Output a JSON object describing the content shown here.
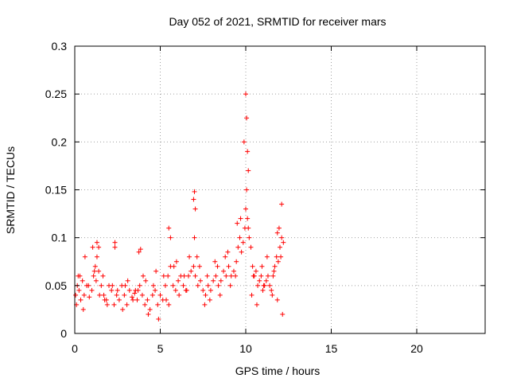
{
  "chart_data": {
    "type": "scatter",
    "title": "Day 052 of 2021, SRMTID for receiver mars",
    "xlabel": "GPS time / hours",
    "ylabel": "SRMTID / TECUs",
    "xlim": [
      0,
      24
    ],
    "ylim": [
      0,
      0.3
    ],
    "xticks": [
      0,
      5,
      10,
      15,
      20
    ],
    "xtick_labels": [
      "0",
      "5",
      "10",
      "15",
      "20"
    ],
    "yticks": [
      0,
      0.05,
      0.1,
      0.15,
      0.2,
      0.25,
      0.3
    ],
    "ytick_labels": [
      "0",
      "0.05",
      "0.1",
      "0.15",
      "0.2",
      "0.25",
      "0.3"
    ],
    "grid": true,
    "marker": "+",
    "series": [
      {
        "name": "SRMTID",
        "color": "#ff0000",
        "x": [
          0.05,
          0.15,
          0.25,
          0.35,
          0.45,
          0.55,
          0.7,
          0.85,
          1.0,
          1.1,
          1.2,
          1.3,
          1.4,
          1.55,
          1.7,
          1.85,
          2.0,
          2.15,
          2.3,
          2.45,
          2.6,
          2.75,
          2.9,
          3.05,
          3.2,
          3.35,
          3.5,
          3.65,
          3.8,
          3.95,
          4.1,
          4.25,
          4.4,
          4.55,
          4.7,
          4.85,
          5.0,
          5.15,
          5.3,
          5.45,
          5.6,
          5.75,
          5.9,
          6.05,
          6.2,
          6.35,
          6.5,
          6.65,
          6.8,
          6.95,
          7.05,
          7.2,
          7.35,
          7.5,
          7.65,
          7.8,
          7.95,
          8.1,
          8.25,
          8.4,
          8.55,
          8.7,
          8.85,
          9.0,
          9.15,
          9.3,
          9.45,
          9.55,
          9.65,
          9.75,
          9.85,
          9.95,
          10.0,
          10.05,
          10.1,
          10.15,
          10.2,
          10.3,
          10.4,
          10.5,
          10.6,
          10.7,
          10.8,
          10.9,
          11.0,
          11.1,
          11.2,
          11.3,
          11.4,
          11.5,
          11.6,
          11.7,
          11.8,
          11.9,
          12.0,
          12.1,
          12.2,
          0.1,
          0.3,
          0.5,
          0.8,
          1.05,
          1.25,
          1.45,
          1.65,
          1.9,
          2.2,
          2.5,
          2.8,
          3.1,
          3.4,
          3.7,
          4.0,
          4.3,
          4.6,
          4.9,
          5.2,
          5.5,
          5.8,
          6.1,
          6.4,
          6.7,
          7.0,
          7.3,
          7.6,
          7.9,
          8.2,
          8.5,
          8.8,
          9.1,
          9.4,
          9.7,
          10.35,
          10.65,
          10.95,
          11.25,
          11.55,
          11.85,
          12.15,
          0.2,
          0.6,
          1.15,
          1.75,
          2.35,
          2.95,
          3.55,
          4.15,
          4.75,
          5.35,
          5.95,
          6.55,
          7.15,
          7.75,
          8.35,
          8.95,
          9.5,
          10.45,
          11.05,
          11.65,
          12.05,
          5.5,
          5.6,
          6.95,
          7.0,
          7.05,
          9.9,
          10.0,
          10.05,
          10.1,
          10.15,
          1.3,
          1.4,
          2.35,
          3.75,
          3.85,
          11.85,
          11.95,
          12.1
        ],
        "y": [
          0.04,
          0.05,
          0.045,
          0.035,
          0.055,
          0.04,
          0.05,
          0.038,
          0.045,
          0.06,
          0.07,
          0.08,
          0.065,
          0.05,
          0.04,
          0.035,
          0.05,
          0.045,
          0.03,
          0.04,
          0.035,
          0.05,
          0.04,
          0.03,
          0.045,
          0.038,
          0.042,
          0.035,
          0.05,
          0.04,
          0.03,
          0.035,
          0.025,
          0.04,
          0.045,
          0.03,
          0.04,
          0.035,
          0.05,
          0.06,
          0.07,
          0.05,
          0.045,
          0.055,
          0.06,
          0.05,
          0.045,
          0.06,
          0.065,
          0.07,
          0.06,
          0.05,
          0.055,
          0.045,
          0.04,
          0.05,
          0.045,
          0.055,
          0.06,
          0.05,
          0.055,
          0.065,
          0.06,
          0.07,
          0.06,
          0.065,
          0.075,
          0.09,
          0.1,
          0.085,
          0.095,
          0.11,
          0.13,
          0.15,
          0.12,
          0.11,
          0.1,
          0.09,
          0.07,
          0.06,
          0.065,
          0.05,
          0.055,
          0.06,
          0.045,
          0.05,
          0.055,
          0.06,
          0.05,
          0.045,
          0.06,
          0.07,
          0.08,
          0.075,
          0.09,
          0.1,
          0.095,
          0.03,
          0.06,
          0.025,
          0.05,
          0.09,
          0.055,
          0.04,
          0.06,
          0.03,
          0.05,
          0.045,
          0.025,
          0.055,
          0.035,
          0.045,
          0.06,
          0.02,
          0.05,
          0.015,
          0.06,
          0.03,
          0.07,
          0.04,
          0.06,
          0.08,
          0.1,
          0.07,
          0.03,
          0.035,
          0.075,
          0.04,
          0.08,
          0.05,
          0.06,
          0.12,
          0.04,
          0.03,
          0.07,
          0.08,
          0.04,
          0.035,
          0.02,
          0.06,
          0.08,
          0.065,
          0.035,
          0.095,
          0.05,
          0.045,
          0.055,
          0.065,
          0.035,
          0.075,
          0.045,
          0.08,
          0.06,
          0.07,
          0.085,
          0.115,
          0.06,
          0.05,
          0.065,
          0.08,
          0.11,
          0.1,
          0.14,
          0.148,
          0.13,
          0.2,
          0.25,
          0.225,
          0.19,
          0.17,
          0.095,
          0.09,
          0.09,
          0.085,
          0.088,
          0.105,
          0.11,
          0.135
        ]
      }
    ]
  }
}
